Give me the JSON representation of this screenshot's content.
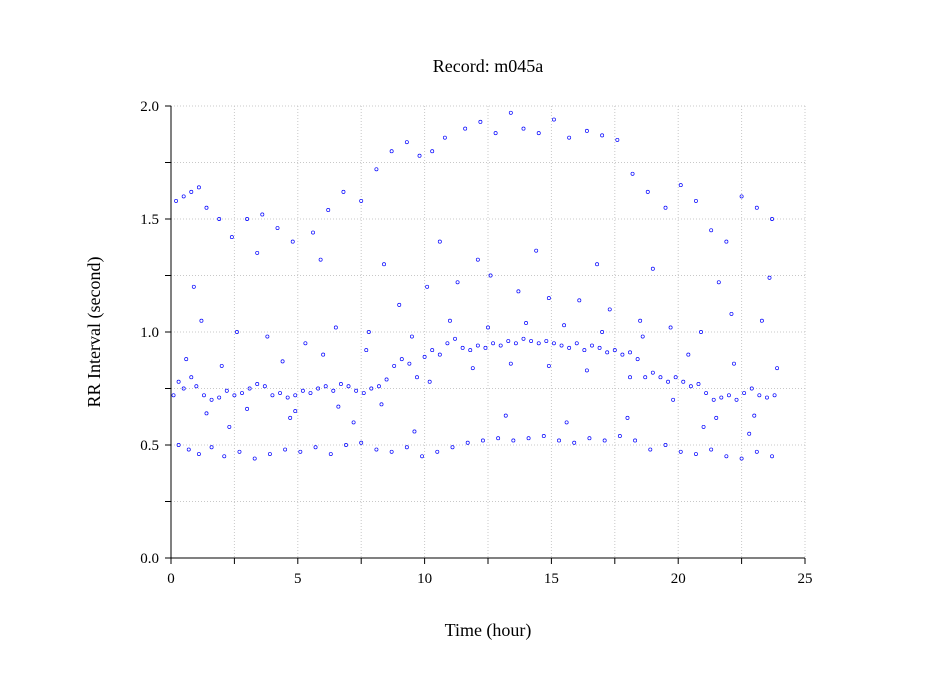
{
  "chart_data": {
    "type": "scatter",
    "title": "Record:  m045a",
    "xlabel": "Time (hour)",
    "ylabel": "RR Interval (second)",
    "xlim": [
      0,
      25
    ],
    "ylim": [
      0,
      2.0
    ],
    "x_ticks": [
      0,
      5,
      10,
      15,
      20,
      25
    ],
    "x_tick_labels": [
      "0",
      "5",
      "10",
      "15",
      "20",
      "25"
    ],
    "y_ticks": [
      0,
      0.5,
      1.0,
      1.5,
      2.0
    ],
    "y_tick_labels": [
      "0.0",
      "0.5",
      "1.0",
      "1.5",
      "2.0"
    ],
    "grid": true,
    "marker": "open-circle",
    "series": [
      {
        "color": "#0000ff",
        "points": [
          [
            0.1,
            0.72
          ],
          [
            0.3,
            0.78
          ],
          [
            0.5,
            0.75
          ],
          [
            0.8,
            0.8
          ],
          [
            1.0,
            0.76
          ],
          [
            1.3,
            0.72
          ],
          [
            1.6,
            0.7
          ],
          [
            1.9,
            0.71
          ],
          [
            2.2,
            0.74
          ],
          [
            2.5,
            0.72
          ],
          [
            2.8,
            0.73
          ],
          [
            3.1,
            0.75
          ],
          [
            3.4,
            0.77
          ],
          [
            3.7,
            0.76
          ],
          [
            4.0,
            0.72
          ],
          [
            4.3,
            0.73
          ],
          [
            4.6,
            0.71
          ],
          [
            4.9,
            0.72
          ],
          [
            5.2,
            0.74
          ],
          [
            5.5,
            0.73
          ],
          [
            5.8,
            0.75
          ],
          [
            6.1,
            0.76
          ],
          [
            6.4,
            0.74
          ],
          [
            6.7,
            0.77
          ],
          [
            7.0,
            0.76
          ],
          [
            7.3,
            0.74
          ],
          [
            7.6,
            0.73
          ],
          [
            7.9,
            0.75
          ],
          [
            8.2,
            0.76
          ],
          [
            8.5,
            0.79
          ],
          [
            8.8,
            0.85
          ],
          [
            9.1,
            0.88
          ],
          [
            9.4,
            0.86
          ],
          [
            9.7,
            0.8
          ],
          [
            10.0,
            0.89
          ],
          [
            10.3,
            0.92
          ],
          [
            10.6,
            0.9
          ],
          [
            10.9,
            0.95
          ],
          [
            11.2,
            0.97
          ],
          [
            11.5,
            0.93
          ],
          [
            11.8,
            0.92
          ],
          [
            12.1,
            0.94
          ],
          [
            12.4,
            0.93
          ],
          [
            12.7,
            0.95
          ],
          [
            13.0,
            0.94
          ],
          [
            13.3,
            0.96
          ],
          [
            13.6,
            0.95
          ],
          [
            13.9,
            0.97
          ],
          [
            14.2,
            0.96
          ],
          [
            14.5,
            0.95
          ],
          [
            14.8,
            0.96
          ],
          [
            15.1,
            0.95
          ],
          [
            15.4,
            0.94
          ],
          [
            15.7,
            0.93
          ],
          [
            16.0,
            0.95
          ],
          [
            16.3,
            0.92
          ],
          [
            16.6,
            0.94
          ],
          [
            16.9,
            0.93
          ],
          [
            17.2,
            0.91
          ],
          [
            17.5,
            0.92
          ],
          [
            17.8,
            0.9
          ],
          [
            18.1,
            0.91
          ],
          [
            18.4,
            0.88
          ],
          [
            18.7,
            0.8
          ],
          [
            19.0,
            0.82
          ],
          [
            19.3,
            0.8
          ],
          [
            19.6,
            0.78
          ],
          [
            19.9,
            0.8
          ],
          [
            20.2,
            0.78
          ],
          [
            20.5,
            0.76
          ],
          [
            20.8,
            0.77
          ],
          [
            21.1,
            0.73
          ],
          [
            21.4,
            0.7
          ],
          [
            21.7,
            0.71
          ],
          [
            22.0,
            0.72
          ],
          [
            22.3,
            0.7
          ],
          [
            22.6,
            0.73
          ],
          [
            22.9,
            0.75
          ],
          [
            23.2,
            0.72
          ],
          [
            23.5,
            0.71
          ],
          [
            23.8,
            0.72
          ],
          [
            0.2,
            1.58
          ],
          [
            0.5,
            1.6
          ],
          [
            0.8,
            1.62
          ],
          [
            1.1,
            1.64
          ],
          [
            1.4,
            1.55
          ],
          [
            1.9,
            1.5
          ],
          [
            2.4,
            1.42
          ],
          [
            3.0,
            1.5
          ],
          [
            3.6,
            1.52
          ],
          [
            4.2,
            1.46
          ],
          [
            4.8,
            1.4
          ],
          [
            5.6,
            1.44
          ],
          [
            6.2,
            1.54
          ],
          [
            6.8,
            1.62
          ],
          [
            7.5,
            1.58
          ],
          [
            8.1,
            1.72
          ],
          [
            8.7,
            1.8
          ],
          [
            9.3,
            1.84
          ],
          [
            9.8,
            1.78
          ],
          [
            10.3,
            1.8
          ],
          [
            10.8,
            1.86
          ],
          [
            11.6,
            1.9
          ],
          [
            12.2,
            1.93
          ],
          [
            12.8,
            1.88
          ],
          [
            13.4,
            1.97
          ],
          [
            13.9,
            1.9
          ],
          [
            14.5,
            1.88
          ],
          [
            15.1,
            1.94
          ],
          [
            15.7,
            1.86
          ],
          [
            16.4,
            1.89
          ],
          [
            17.0,
            1.87
          ],
          [
            17.6,
            1.85
          ],
          [
            18.2,
            1.7
          ],
          [
            18.8,
            1.62
          ],
          [
            19.5,
            1.55
          ],
          [
            20.1,
            1.65
          ],
          [
            20.7,
            1.58
          ],
          [
            21.3,
            1.45
          ],
          [
            21.9,
            1.4
          ],
          [
            22.5,
            1.6
          ],
          [
            23.1,
            1.55
          ],
          [
            23.7,
            1.5
          ],
          [
            0.3,
            0.5
          ],
          [
            0.7,
            0.48
          ],
          [
            1.1,
            0.46
          ],
          [
            1.6,
            0.49
          ],
          [
            2.1,
            0.45
          ],
          [
            2.7,
            0.47
          ],
          [
            3.3,
            0.44
          ],
          [
            3.9,
            0.46
          ],
          [
            4.5,
            0.48
          ],
          [
            5.1,
            0.47
          ],
          [
            5.7,
            0.49
          ],
          [
            6.3,
            0.46
          ],
          [
            6.9,
            0.5
          ],
          [
            7.5,
            0.51
          ],
          [
            8.1,
            0.48
          ],
          [
            8.7,
            0.47
          ],
          [
            9.3,
            0.49
          ],
          [
            9.9,
            0.45
          ],
          [
            10.5,
            0.47
          ],
          [
            11.1,
            0.49
          ],
          [
            11.7,
            0.51
          ],
          [
            12.3,
            0.52
          ],
          [
            12.9,
            0.53
          ],
          [
            13.5,
            0.52
          ],
          [
            14.1,
            0.53
          ],
          [
            14.7,
            0.54
          ],
          [
            15.3,
            0.52
          ],
          [
            15.9,
            0.51
          ],
          [
            16.5,
            0.53
          ],
          [
            17.1,
            0.52
          ],
          [
            17.7,
            0.54
          ],
          [
            18.3,
            0.52
          ],
          [
            18.9,
            0.48
          ],
          [
            19.5,
            0.5
          ],
          [
            20.1,
            0.47
          ],
          [
            20.7,
            0.46
          ],
          [
            21.3,
            0.48
          ],
          [
            21.9,
            0.45
          ],
          [
            22.5,
            0.44
          ],
          [
            23.1,
            0.47
          ],
          [
            23.7,
            0.45
          ],
          [
            1.2,
            1.05
          ],
          [
            2.6,
            1.0
          ],
          [
            3.8,
            0.98
          ],
          [
            5.3,
            0.95
          ],
          [
            6.5,
            1.02
          ],
          [
            7.8,
            1.0
          ],
          [
            9.0,
            1.12
          ],
          [
            10.1,
            1.2
          ],
          [
            11.3,
            1.22
          ],
          [
            12.6,
            1.25
          ],
          [
            13.7,
            1.18
          ],
          [
            14.9,
            1.15
          ],
          [
            16.1,
            1.14
          ],
          [
            17.3,
            1.1
          ],
          [
            18.5,
            1.05
          ],
          [
            19.7,
            1.02
          ],
          [
            20.9,
            1.0
          ],
          [
            22.1,
            1.08
          ],
          [
            23.3,
            1.05
          ],
          [
            0.9,
            1.2
          ],
          [
            3.4,
            1.35
          ],
          [
            5.9,
            1.32
          ],
          [
            8.4,
            1.3
          ],
          [
            10.6,
            1.4
          ],
          [
            12.1,
            1.32
          ],
          [
            14.4,
            1.36
          ],
          [
            16.8,
            1.3
          ],
          [
            19.0,
            1.28
          ],
          [
            21.6,
            1.22
          ],
          [
            23.6,
            1.24
          ],
          [
            2.3,
            0.58
          ],
          [
            4.7,
            0.62
          ],
          [
            7.2,
            0.6
          ],
          [
            9.6,
            0.56
          ],
          [
            13.2,
            0.63
          ],
          [
            15.6,
            0.6
          ],
          [
            18.0,
            0.62
          ],
          [
            21.0,
            0.58
          ],
          [
            22.8,
            0.55
          ],
          [
            0.6,
            0.88
          ],
          [
            2.0,
            0.85
          ],
          [
            4.4,
            0.87
          ],
          [
            6.0,
            0.9
          ],
          [
            7.7,
            0.92
          ],
          [
            9.5,
            0.98
          ],
          [
            11.0,
            1.05
          ],
          [
            12.5,
            1.02
          ],
          [
            14.0,
            1.04
          ],
          [
            15.5,
            1.03
          ],
          [
            17.0,
            1.0
          ],
          [
            18.6,
            0.98
          ],
          [
            20.4,
            0.9
          ],
          [
            22.2,
            0.86
          ],
          [
            23.9,
            0.84
          ],
          [
            1.4,
            0.64
          ],
          [
            3.0,
            0.66
          ],
          [
            4.9,
            0.65
          ],
          [
            6.6,
            0.67
          ],
          [
            8.3,
            0.68
          ],
          [
            10.2,
            0.78
          ],
          [
            11.9,
            0.84
          ],
          [
            13.4,
            0.86
          ],
          [
            14.9,
            0.85
          ],
          [
            16.4,
            0.83
          ],
          [
            18.1,
            0.8
          ],
          [
            19.8,
            0.7
          ],
          [
            21.5,
            0.62
          ],
          [
            23.0,
            0.63
          ]
        ]
      }
    ]
  }
}
